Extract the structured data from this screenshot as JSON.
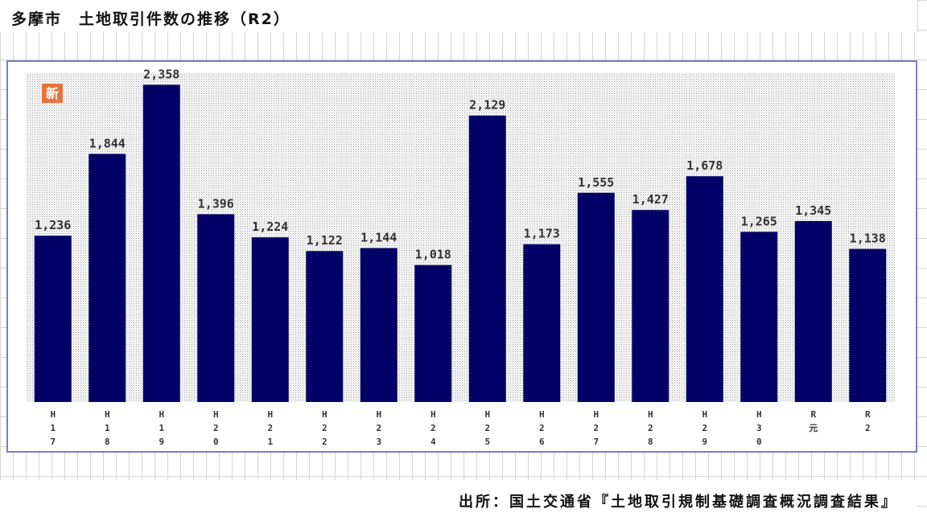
{
  "title": "多摩市　土地取引件数の推移（R2）",
  "badge": "新",
  "source": "出所：国土交通省『土地取引規制基礎調査概況調査結果』",
  "colors": {
    "bar": "#000066",
    "frame": "#7b7fc0",
    "badge": "#e8733a"
  },
  "chart_data": {
    "type": "bar",
    "categories": [
      "H17",
      "H18",
      "H19",
      "H20",
      "H21",
      "H22",
      "H23",
      "H24",
      "H25",
      "H26",
      "H27",
      "H28",
      "H29",
      "H30",
      "R元",
      "R2"
    ],
    "tick_lines": [
      [
        "H",
        "1",
        "7"
      ],
      [
        "H",
        "1",
        "8"
      ],
      [
        "H",
        "1",
        "9"
      ],
      [
        "H",
        "2",
        "0"
      ],
      [
        "H",
        "2",
        "1"
      ],
      [
        "H",
        "2",
        "2"
      ],
      [
        "H",
        "2",
        "3"
      ],
      [
        "H",
        "2",
        "4"
      ],
      [
        "H",
        "2",
        "5"
      ],
      [
        "H",
        "2",
        "6"
      ],
      [
        "H",
        "2",
        "7"
      ],
      [
        "H",
        "2",
        "8"
      ],
      [
        "H",
        "2",
        "9"
      ],
      [
        "H",
        "3",
        "0"
      ],
      [
        "R",
        "元"
      ],
      [
        "R",
        "2"
      ]
    ],
    "values": [
      1236,
      1844,
      2358,
      1396,
      1224,
      1122,
      1144,
      1018,
      2129,
      1173,
      1555,
      1427,
      1678,
      1265,
      1345,
      1138
    ],
    "value_labels": [
      "1,236",
      "1,844",
      "2,358",
      "1,396",
      "1,224",
      "1,122",
      "1,144",
      "1,018",
      "2,129",
      "1,173",
      "1,555",
      "1,427",
      "1,678",
      "1,265",
      "1,345",
      "1,138"
    ],
    "ylim": [
      0,
      2450
    ],
    "grid": false,
    "xlabel": "",
    "ylabel": ""
  }
}
